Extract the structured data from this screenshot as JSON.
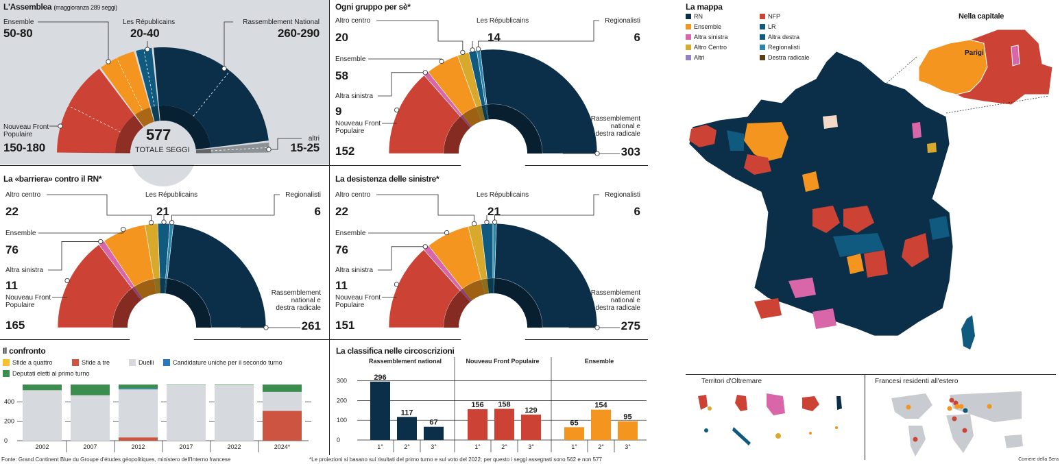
{
  "colors": {
    "RN": "#0b2f48",
    "NFP": "#cc4234",
    "Ensemble": "#f3951f",
    "Altra sinistra": "#d866a9",
    "Altro Centro": "#d9a92c",
    "LR": "#0f5a7e",
    "Altra destra": "#0f5a7e",
    "Regionalisti": "#2b86ad",
    "Altri": "#9282bf",
    "Destra radicale": "#5c3d16",
    "altri_gray": "#8c9296",
    "duelli": "#d6dade",
    "sfide_quattro": "#f7c12e",
    "sfide_tre": "#cc5440",
    "candidature_uniche": "#2a78ba",
    "deputati_eletti": "#3b8d4d"
  },
  "assembly": {
    "title": "L'Assemblea",
    "subtitle": "(maggioranza 289 seggi)",
    "total_value": "577",
    "total_label": "TOTALE SEGGI",
    "groups": [
      {
        "name": "Ensemble",
        "range": "50-80",
        "min": 50,
        "max": 80,
        "color_key": "Ensemble"
      },
      {
        "name": "Les Républicains",
        "range": "20-40",
        "min": 20,
        "max": 40,
        "color_key": "LR"
      },
      {
        "name": "Rassemblement National",
        "range": "260-290",
        "min": 260,
        "max": 290,
        "color_key": "RN"
      },
      {
        "name": "Nouveau Front Populaire",
        "range": "150-180",
        "min": 150,
        "max": 180,
        "color_key": "NFP"
      },
      {
        "name": "altri",
        "range": "15-25",
        "min": 15,
        "max": 25,
        "color_key": "altri_gray"
      }
    ]
  },
  "chart_data": [
    {
      "type": "pie",
      "subtype": "half-donut ranges",
      "title": "L'Assemblea (maggioranza 289 seggi)",
      "total": 577,
      "categories": [
        "Nouveau Front Populaire",
        "Ensemble",
        "Les Républicains",
        "Rassemblement National",
        "altri"
      ],
      "ranges": [
        [
          150,
          180
        ],
        [
          50,
          80
        ],
        [
          20,
          40
        ],
        [
          260,
          290
        ],
        [
          15,
          25
        ]
      ]
    },
    {
      "type": "pie",
      "subtype": "half-donut",
      "title": "Ogni gruppo per sè*",
      "categories": [
        "Nouveau Front Populaire",
        "Altra sinistra",
        "Ensemble",
        "Altro centro",
        "Les Républicains",
        "Regionalisti",
        "Rassemblement national e destra radicale"
      ],
      "values": [
        152,
        9,
        58,
        20,
        14,
        6,
        303
      ]
    },
    {
      "type": "pie",
      "subtype": "half-donut",
      "title": "La «barriera» contro il RN*",
      "categories": [
        "Nouveau Front Populaire",
        "Altra sinistra",
        "Ensemble",
        "Altro centro",
        "Les Républicains",
        "Regionalisti",
        "Rassemblement national e destra radicale"
      ],
      "values": [
        165,
        11,
        76,
        22,
        21,
        6,
        261
      ]
    },
    {
      "type": "pie",
      "subtype": "half-donut",
      "title": "La desistenza delle sinistre*",
      "categories": [
        "Nouveau Front Populaire",
        "Altra sinistra",
        "Ensemble",
        "Altro centro",
        "Les Républicains",
        "Regionalisti",
        "Rassemblement national e destra radicale"
      ],
      "values": [
        151,
        11,
        76,
        22,
        21,
        6,
        275
      ]
    },
    {
      "type": "bar",
      "subtype": "stacked",
      "title": "Il confronto",
      "categories": [
        "2002",
        "2007",
        "2012",
        "2017",
        "2022",
        "2024*"
      ],
      "yticks": [
        0,
        200,
        400
      ],
      "ylim": [
        0,
        577
      ],
      "series": [
        {
          "name": "Sfide a tre",
          "color_key": "sfide_tre",
          "values": [
            0,
            0,
            34,
            0,
            0,
            306
          ]
        },
        {
          "name": "Sfide a quattro",
          "color_key": "sfide_quattro",
          "values": [
            0,
            0,
            0,
            0,
            0,
            0
          ]
        },
        {
          "name": "Duelli",
          "color_key": "duelli",
          "values": [
            519,
            467,
            493,
            573,
            572,
            195
          ]
        },
        {
          "name": "Candidature uniche per il secondo turno",
          "color_key": "candidature_uniche",
          "values": [
            0,
            0,
            10,
            0,
            0,
            0
          ]
        },
        {
          "name": "Deputati eletti al primo turno",
          "color_key": "deputati_eletti",
          "values": [
            58,
            110,
            40,
            4,
            5,
            76
          ]
        }
      ]
    },
    {
      "type": "bar",
      "subtype": "grouped",
      "title": "La classifica nelle circoscrizioni",
      "yticks": [
        0,
        100,
        200,
        300
      ],
      "ylim": [
        0,
        320
      ],
      "groups": [
        {
          "name": "Rassemblement national",
          "color_key": "RN",
          "categories": [
            "1°",
            "2°",
            "3°"
          ],
          "values": [
            296,
            117,
            67
          ]
        },
        {
          "name": "Nouveau Front Populaire",
          "color_key": "NFP",
          "categories": [
            "1°",
            "2°",
            "3°"
          ],
          "values": [
            156,
            158,
            129
          ]
        },
        {
          "name": "Ensemble",
          "color_key": "Ensemble",
          "categories": [
            "1°",
            "2°",
            "3°"
          ],
          "values": [
            65,
            154,
            95
          ]
        }
      ]
    }
  ],
  "hemicycles": [
    {
      "title": "Ogni gruppo per sè*",
      "groups": [
        {
          "name": "Nouveau Front Populaire",
          "name_lines": [
            "Nouveau Front",
            "Populaire"
          ],
          "value": 152,
          "color_key": "NFP"
        },
        {
          "name": "Altra sinistra",
          "name_lines": [
            "Altra sinistra"
          ],
          "value": 9,
          "color_key": "Altra sinistra"
        },
        {
          "name": "Ensemble",
          "name_lines": [
            "Ensemble"
          ],
          "value": 58,
          "color_key": "Ensemble"
        },
        {
          "name": "Altro centro",
          "name_lines": [
            "Altro centro"
          ],
          "value": 20,
          "color_key": "Altro Centro"
        },
        {
          "name": "Les Républicains",
          "name_lines": [
            "Les Républicains"
          ],
          "value": 14,
          "color_key": "LR"
        },
        {
          "name": "Regionalisti",
          "name_lines": [
            "Regionalisti"
          ],
          "value": 6,
          "color_key": "Regionalisti"
        },
        {
          "name": "Rassemblement national e destra radicale",
          "name_lines": [
            "Rassemblement",
            "national e",
            "destra radicale"
          ],
          "value": 303,
          "color_key": "RN"
        }
      ]
    },
    {
      "title": "La «barriera» contro il RN*",
      "groups": [
        {
          "name": "Nouveau Front Populaire",
          "name_lines": [
            "Nouveau Front",
            "Populaire"
          ],
          "value": 165,
          "color_key": "NFP"
        },
        {
          "name": "Altra sinistra",
          "name_lines": [
            "Altra sinistra"
          ],
          "value": 11,
          "color_key": "Altra sinistra"
        },
        {
          "name": "Ensemble",
          "name_lines": [
            "Ensemble"
          ],
          "value": 76,
          "color_key": "Ensemble"
        },
        {
          "name": "Altro centro",
          "name_lines": [
            "Altro centro"
          ],
          "value": 22,
          "color_key": "Altro Centro"
        },
        {
          "name": "Les Républicains",
          "name_lines": [
            "Les Républicains"
          ],
          "value": 21,
          "color_key": "LR"
        },
        {
          "name": "Regionalisti",
          "name_lines": [
            "Regionalisti"
          ],
          "value": 6,
          "color_key": "Regionalisti"
        },
        {
          "name": "Rassemblement national e destra radicale",
          "name_lines": [
            "Rassemblement",
            "national e",
            "destra radicale"
          ],
          "value": 261,
          "color_key": "RN"
        }
      ]
    },
    {
      "title": "La desistenza delle sinistre*",
      "groups": [
        {
          "name": "Nouveau Front Populaire",
          "name_lines": [
            "Nouveau Front",
            "Populaire"
          ],
          "value": 151,
          "color_key": "NFP"
        },
        {
          "name": "Altra sinistra",
          "name_lines": [
            "Altra sinistra"
          ],
          "value": 11,
          "color_key": "Altra sinistra"
        },
        {
          "name": "Ensemble",
          "name_lines": [
            "Ensemble"
          ],
          "value": 76,
          "color_key": "Ensemble"
        },
        {
          "name": "Altro centro",
          "name_lines": [
            "Altro centro"
          ],
          "value": 22,
          "color_key": "Altro Centro"
        },
        {
          "name": "Les Républicains",
          "name_lines": [
            "Les Républicains"
          ],
          "value": 21,
          "color_key": "LR"
        },
        {
          "name": "Regionalisti",
          "name_lines": [
            "Regionalisti"
          ],
          "value": 6,
          "color_key": "Regionalisti"
        },
        {
          "name": "Rassemblement national e destra radicale",
          "name_lines": [
            "Rassemblement",
            "national e",
            "destra radicale"
          ],
          "value": 275,
          "color_key": "RN"
        }
      ]
    }
  ],
  "confronto": {
    "title": "Il confronto",
    "legend": [
      {
        "label": "Sfide a quattro",
        "color_key": "sfide_quattro"
      },
      {
        "label": "Sfide a tre",
        "color_key": "sfide_tre"
      },
      {
        "label": "Duelli",
        "color_key": "duelli"
      },
      {
        "label": "Candidature uniche per il secondo turno",
        "color_key": "candidature_uniche"
      },
      {
        "label": "Deputati eletti al primo turno",
        "color_key": "deputati_eletti"
      }
    ]
  },
  "classifica": {
    "title": "La classifica nelle circoscrizioni"
  },
  "map": {
    "title": "La mappa",
    "legend": [
      {
        "label": "RN",
        "color_key": "RN"
      },
      {
        "label": "Ensemble",
        "color_key": "Ensemble"
      },
      {
        "label": "Altra sinistra",
        "color_key": "Altra sinistra"
      },
      {
        "label": "Altro Centro",
        "color_key": "Altro Centro"
      },
      {
        "label": "Altri",
        "color_key": "Altri"
      },
      {
        "label": "NFP",
        "color_key": "NFP"
      },
      {
        "label": "LR",
        "color_key": "LR"
      },
      {
        "label": "Altra destra",
        "color_key": "Altra destra"
      },
      {
        "label": "Regionalisti",
        "color_key": "Regionalisti"
      },
      {
        "label": "Destra radicale",
        "color_key": "Destra radicale"
      }
    ],
    "inset_title": "Nella capitale",
    "inset_label": "Parigi",
    "overseas_title": "Territori d'Oltremare",
    "abroad_title": "Francesi residenti all'estero"
  },
  "footer": {
    "source": "Fonte: Grand Continent Blue du Groupe d'études géopolitiques, ministero dell'Interno francese",
    "note": "*Le proiezioni si basano sui risultati del primo turno e sul voto del 2022; per questo i seggi assegnati sono 562 e non 577",
    "credit": "Corriere della Sera"
  }
}
